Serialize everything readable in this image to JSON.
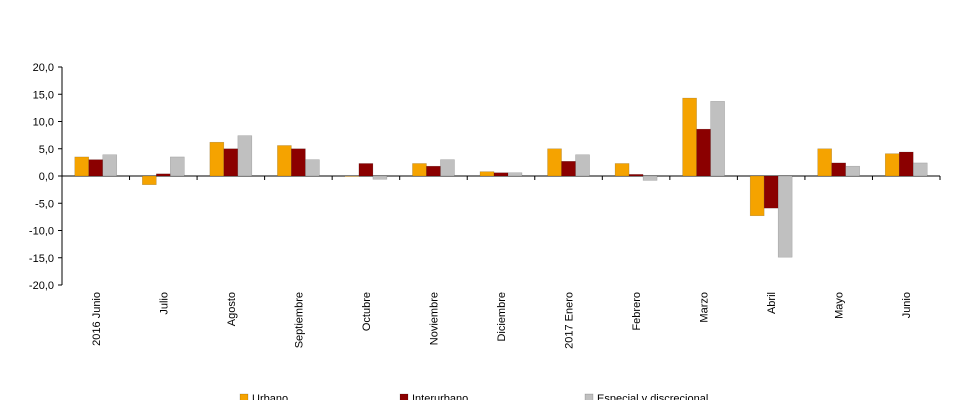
{
  "chart_data": {
    "type": "bar",
    "categories": [
      "2016 Junio",
      "Julio",
      "Agosto",
      "Septiembre",
      "Octubre",
      "Noviembre",
      "Diciembre",
      "2017 Enero",
      "Febrero",
      "Marzo",
      "Abril",
      "Mayo",
      "Junio"
    ],
    "series": [
      {
        "name": "Urbano",
        "color": "#F5A300",
        "values": [
          3.5,
          -1.6,
          6.2,
          5.6,
          0.0,
          2.3,
          0.8,
          5.0,
          2.3,
          14.3,
          -7.3,
          5.0,
          4.1
        ]
      },
      {
        "name": "Interurbano",
        "color": "#8B0000",
        "values": [
          3.0,
          0.4,
          5.0,
          5.0,
          2.3,
          1.8,
          0.6,
          2.7,
          0.3,
          8.6,
          -5.9,
          2.4,
          4.4
        ]
      },
      {
        "name": "Especial y discrecional",
        "color": "#C0C0C0",
        "values": [
          3.9,
          3.5,
          7.4,
          3.0,
          -0.6,
          3.0,
          0.6,
          3.9,
          -0.8,
          13.7,
          -14.9,
          1.8,
          2.4
        ]
      }
    ],
    "y_ticks": [
      "20,0",
      "15,0",
      "10,0",
      "5,0",
      "0,0",
      "-5,0",
      "-10,0",
      "-15,0",
      "-20,0"
    ],
    "ylim": [
      -20,
      20
    ],
    "legend_position": "bottom",
    "grid": false
  }
}
